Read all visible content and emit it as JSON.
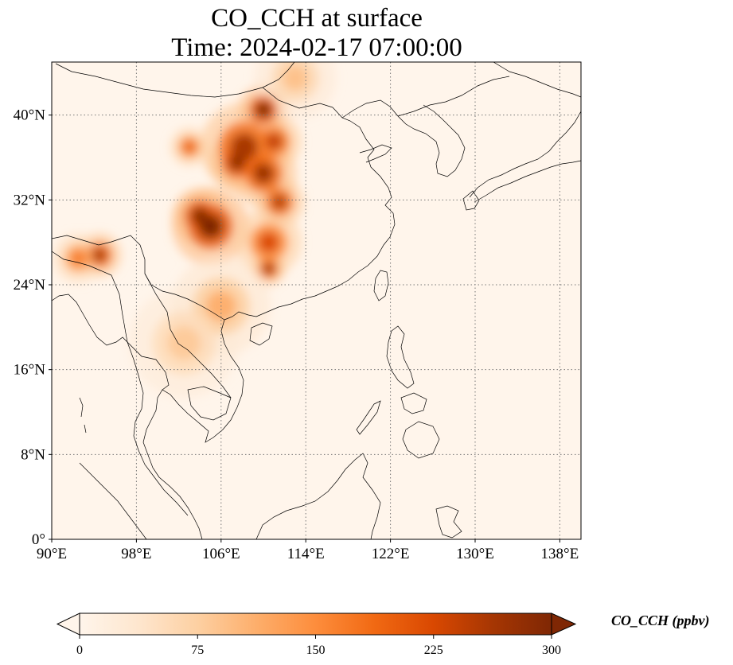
{
  "title": {
    "line1": "CO_CCH at surface",
    "line2": "Time: 2024-02-17 07:00:00"
  },
  "map": {
    "lon_range": [
      90,
      140
    ],
    "lat_range": [
      0,
      45
    ],
    "lon_ticks": [
      {
        "value": 90,
        "label": "90°E"
      },
      {
        "value": 98,
        "label": "98°E"
      },
      {
        "value": 106,
        "label": "106°E"
      },
      {
        "value": 114,
        "label": "114°E"
      },
      {
        "value": 122,
        "label": "122°E"
      },
      {
        "value": 130,
        "label": "130°E"
      },
      {
        "value": 138,
        "label": "138°E"
      }
    ],
    "lat_ticks": [
      {
        "value": 0,
        "label": "0°"
      },
      {
        "value": 8,
        "label": "8°N"
      },
      {
        "value": 16,
        "label": "16°N"
      },
      {
        "value": 24,
        "label": "24°N"
      },
      {
        "value": 32,
        "label": "32°N"
      },
      {
        "value": 40,
        "label": "40°N"
      }
    ],
    "gridlines": true,
    "background_color": "#fff5eb",
    "hotspots": [
      {
        "lon": 105.0,
        "lat": 29.5,
        "value": 300,
        "spread": 1.4
      },
      {
        "lon": 104.0,
        "lat": 30.5,
        "value": 290,
        "spread": 1.0
      },
      {
        "lon": 110.0,
        "lat": 40.5,
        "value": 300,
        "spread": 0.9
      },
      {
        "lon": 108.2,
        "lat": 37.0,
        "value": 260,
        "spread": 1.6
      },
      {
        "lon": 107.5,
        "lat": 35.5,
        "value": 280,
        "spread": 1.0
      },
      {
        "lon": 110.0,
        "lat": 34.5,
        "value": 270,
        "spread": 1.2
      },
      {
        "lon": 111.0,
        "lat": 37.5,
        "value": 240,
        "spread": 1.0
      },
      {
        "lon": 111.5,
        "lat": 31.8,
        "value": 250,
        "spread": 0.9
      },
      {
        "lon": 110.5,
        "lat": 28.0,
        "value": 220,
        "spread": 1.2
      },
      {
        "lon": 110.5,
        "lat": 25.5,
        "value": 280,
        "spread": 0.6
      },
      {
        "lon": 94.5,
        "lat": 26.8,
        "value": 260,
        "spread": 0.8
      },
      {
        "lon": 92.5,
        "lat": 26.5,
        "value": 170,
        "spread": 0.9
      },
      {
        "lon": 103.0,
        "lat": 37.0,
        "value": 200,
        "spread": 0.7
      },
      {
        "lon": 106.0,
        "lat": 22.0,
        "value": 110,
        "spread": 1.8
      },
      {
        "lon": 102.5,
        "lat": 18.5,
        "value": 80,
        "spread": 2.0
      },
      {
        "lon": 113.0,
        "lat": 43.5,
        "value": 90,
        "spread": 1.5
      }
    ]
  },
  "colorbar": {
    "title": "CO_CCH (ppbv)",
    "min": 0,
    "max": 300,
    "ticks": [
      {
        "value": 0,
        "label": "0"
      },
      {
        "value": 75,
        "label": "75"
      },
      {
        "value": 150,
        "label": "150"
      },
      {
        "value": 225,
        "label": "225"
      },
      {
        "value": 300,
        "label": "300"
      }
    ],
    "colormap": "OrRd",
    "colors": [
      "#fff5eb",
      "#fee6ce",
      "#fdd0a2",
      "#fdae6b",
      "#fd8d3c",
      "#f16913",
      "#d94801",
      "#a63603",
      "#7f2704"
    ],
    "extend": "both"
  }
}
